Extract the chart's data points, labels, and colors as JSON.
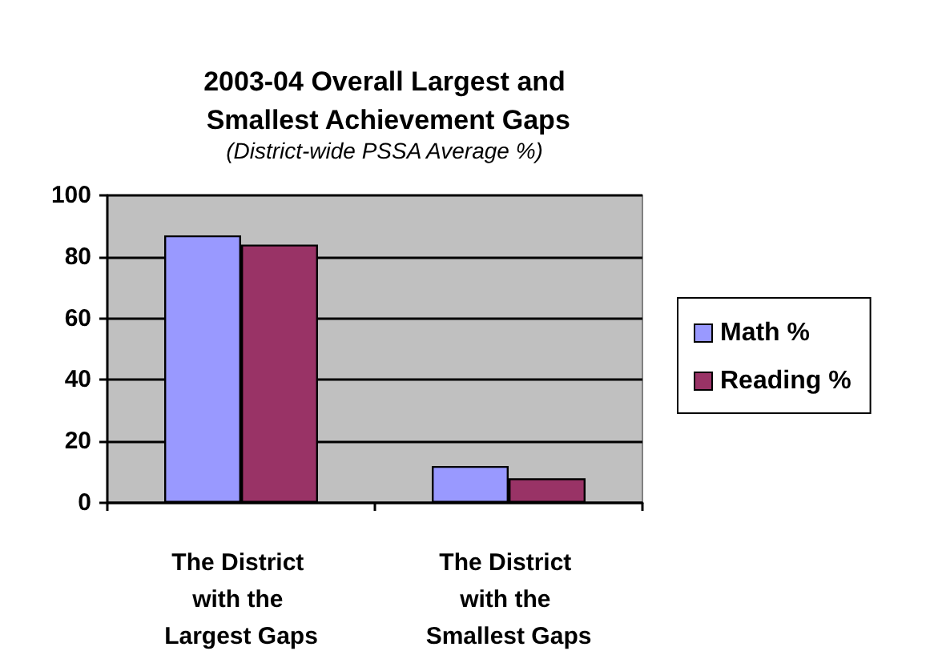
{
  "chart_data": {
    "type": "bar",
    "title": "2003-04 Overall Largest and Smallest Achievement Gaps",
    "subtitle": "(District-wide PSSA Average %)",
    "categories": [
      "The District with the Largest Gaps",
      "The District with the Smallest Gaps"
    ],
    "series": [
      {
        "name": "Math %",
        "color": "#9999ff",
        "values": [
          87,
          12
        ]
      },
      {
        "name": "Reading %",
        "color": "#993366",
        "values": [
          84,
          8
        ]
      }
    ],
    "ylim": [
      0,
      100
    ],
    "yticks": [
      0,
      20,
      40,
      60,
      80,
      100
    ],
    "grid": "y",
    "legend": "right"
  }
}
